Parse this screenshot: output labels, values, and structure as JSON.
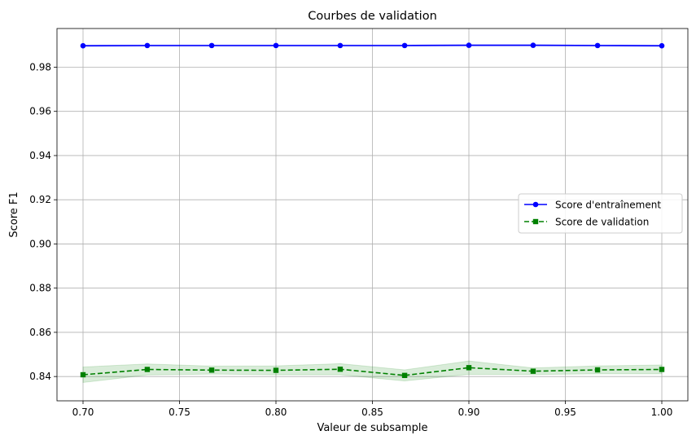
{
  "chart_data": {
    "type": "line",
    "title": "Courbes de validation",
    "xlabel": "Valeur de subsample",
    "ylabel": "Score F1",
    "xlim": [
      0.6865,
      1.0135
    ],
    "ylim": [
      0.829,
      0.9975
    ],
    "x_ticks": [
      0.7,
      0.75,
      0.8,
      0.85,
      0.9,
      0.95,
      1.0
    ],
    "x_tick_labels": [
      "0.70",
      "0.75",
      "0.80",
      "0.85",
      "0.90",
      "0.95",
      "1.00"
    ],
    "y_ticks": [
      0.84,
      0.86,
      0.88,
      0.9,
      0.92,
      0.94,
      0.96,
      0.98
    ],
    "y_tick_labels": [
      "0.84",
      "0.86",
      "0.88",
      "0.90",
      "0.92",
      "0.94",
      "0.96",
      "0.98"
    ],
    "grid": true,
    "legend_position": "center-right",
    "x": [
      0.7,
      0.7333,
      0.7667,
      0.8,
      0.8333,
      0.8667,
      0.9,
      0.9333,
      0.9667,
      1.0
    ],
    "series": [
      {
        "name": "Score d'entraînement",
        "color": "#0000ff",
        "linestyle": "solid",
        "marker": "circle",
        "values": [
          0.9897,
          0.9898,
          0.9898,
          0.9898,
          0.9898,
          0.9898,
          0.9899,
          0.9899,
          0.9898,
          0.9897
        ],
        "band": [
          0.0003,
          0.0003,
          0.0003,
          0.0003,
          0.0003,
          0.0003,
          0.0003,
          0.0003,
          0.0003,
          0.0003
        ]
      },
      {
        "name": "Score de validation",
        "color": "#008000",
        "linestyle": "dashed",
        "marker": "square",
        "values": [
          0.8408,
          0.8432,
          0.8429,
          0.8428,
          0.8433,
          0.8405,
          0.844,
          0.8424,
          0.843,
          0.8432
        ],
        "band": [
          0.0035,
          0.0025,
          0.0018,
          0.002,
          0.0025,
          0.0025,
          0.003,
          0.0015,
          0.0018,
          0.002
        ]
      }
    ]
  }
}
